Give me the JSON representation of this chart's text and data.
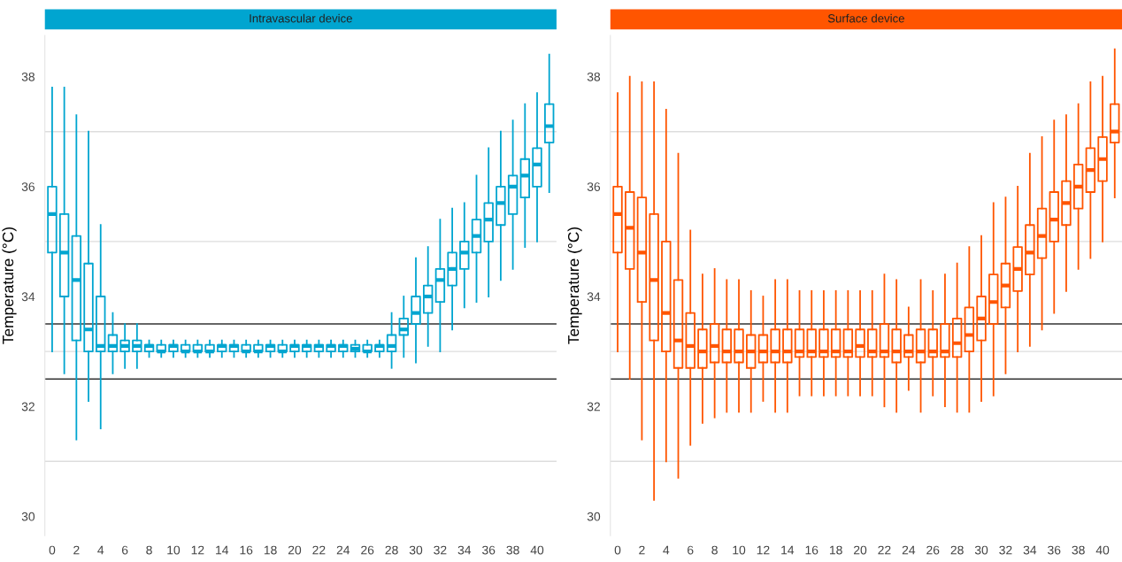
{
  "chart_data": [
    {
      "type": "box",
      "title": "Intravascular device",
      "ylabel": "Temperature (°C)",
      "categories": [
        "0",
        null,
        "2",
        null,
        "4",
        null,
        "6",
        null,
        "8",
        null,
        "10",
        null,
        "12",
        null,
        "14",
        null,
        "16",
        null,
        "18",
        null,
        "20",
        null,
        "22",
        null,
        "24",
        null,
        "26",
        null,
        "28",
        null,
        "30",
        null,
        "32",
        null,
        "34",
        null,
        "36",
        null,
        "38",
        null,
        "40",
        null
      ],
      "ylim": [
        29.65,
        38.75
      ],
      "yticks": [
        30,
        {
          "value": 31,
          "label": null
        },
        32,
        {
          "value": 33,
          "label": null
        },
        34,
        {
          "value": 35,
          "label": null
        },
        36,
        {
          "value": 37,
          "label": null
        },
        38
      ],
      "grid": "y",
      "legend": false,
      "ref_lines": [
        {
          "axis": "y",
          "value": 33.5,
          "color": "#333333"
        },
        {
          "axis": "y",
          "value": 32.5,
          "color": "#333333"
        }
      ],
      "series": [
        {
          "color": "#00a5d0",
          "boxes": [
            {
              "low": 33.0,
              "q1": 34.8,
              "median": 35.5,
              "q3": 36.0,
              "high": 37.8
            },
            {
              "low": 32.6,
              "q1": 34.0,
              "median": 34.8,
              "q3": 35.5,
              "high": 37.8
            },
            {
              "low": 31.4,
              "q1": 33.2,
              "median": 34.3,
              "q3": 35.1,
              "high": 37.3
            },
            {
              "low": 32.1,
              "q1": 33.0,
              "median": 33.4,
              "q3": 34.6,
              "high": 37.0
            },
            {
              "low": 31.6,
              "q1": 33.0,
              "median": 33.1,
              "q3": 34.0,
              "high": 35.3
            },
            {
              "low": 32.6,
              "q1": 33.0,
              "median": 33.1,
              "q3": 33.3,
              "high": 33.7
            },
            {
              "low": 32.7,
              "q1": 33.0,
              "median": 33.1,
              "q3": 33.2,
              "high": 33.5
            },
            {
              "low": 32.7,
              "q1": 33.0,
              "median": 33.1,
              "q3": 33.2,
              "high": 33.5
            },
            {
              "low": 32.9,
              "q1": 33.0,
              "median": 33.1,
              "q3": 33.12,
              "high": 33.2
            },
            {
              "low": 32.9,
              "q1": 33.0,
              "median": 33.0,
              "q3": 33.12,
              "high": 33.2
            },
            {
              "low": 32.9,
              "q1": 33.0,
              "median": 33.1,
              "q3": 33.12,
              "high": 33.2
            },
            {
              "low": 32.9,
              "q1": 33.0,
              "median": 33.0,
              "q3": 33.12,
              "high": 33.2
            },
            {
              "low": 32.9,
              "q1": 33.0,
              "median": 33.0,
              "q3": 33.12,
              "high": 33.2
            },
            {
              "low": 32.9,
              "q1": 33.0,
              "median": 33.0,
              "q3": 33.12,
              "high": 33.2
            },
            {
              "low": 32.9,
              "q1": 33.0,
              "median": 33.1,
              "q3": 33.12,
              "high": 33.2
            },
            {
              "low": 32.9,
              "q1": 33.0,
              "median": 33.1,
              "q3": 33.12,
              "high": 33.2
            },
            {
              "low": 32.9,
              "q1": 33.0,
              "median": 33.0,
              "q3": 33.12,
              "high": 33.2
            },
            {
              "low": 32.9,
              "q1": 33.0,
              "median": 33.0,
              "q3": 33.12,
              "high": 33.2
            },
            {
              "low": 32.9,
              "q1": 33.0,
              "median": 33.1,
              "q3": 33.12,
              "high": 33.2
            },
            {
              "low": 32.9,
              "q1": 33.0,
              "median": 33.0,
              "q3": 33.12,
              "high": 33.2
            },
            {
              "low": 32.9,
              "q1": 33.0,
              "median": 33.1,
              "q3": 33.12,
              "high": 33.2
            },
            {
              "low": 32.9,
              "q1": 33.0,
              "median": 33.1,
              "q3": 33.12,
              "high": 33.2
            },
            {
              "low": 32.9,
              "q1": 33.0,
              "median": 33.1,
              "q3": 33.12,
              "high": 33.2
            },
            {
              "low": 32.9,
              "q1": 33.0,
              "median": 33.1,
              "q3": 33.12,
              "high": 33.2
            },
            {
              "low": 32.9,
              "q1": 33.0,
              "median": 33.1,
              "q3": 33.12,
              "high": 33.2
            },
            {
              "low": 32.9,
              "q1": 33.0,
              "median": 33.05,
              "q3": 33.12,
              "high": 33.2
            },
            {
              "low": 32.9,
              "q1": 33.0,
              "median": 33.0,
              "q3": 33.12,
              "high": 33.2
            },
            {
              "low": 32.9,
              "q1": 33.0,
              "median": 33.1,
              "q3": 33.12,
              "high": 33.2
            },
            {
              "low": 32.7,
              "q1": 33.0,
              "median": 33.1,
              "q3": 33.3,
              "high": 33.7
            },
            {
              "low": 32.9,
              "q1": 33.3,
              "median": 33.4,
              "q3": 33.6,
              "high": 34.0
            },
            {
              "low": 32.8,
              "q1": 33.5,
              "median": 33.7,
              "q3": 34.0,
              "high": 34.7
            },
            {
              "low": 33.1,
              "q1": 33.7,
              "median": 34.0,
              "q3": 34.2,
              "high": 34.9
            },
            {
              "low": 33.0,
              "q1": 33.9,
              "median": 34.3,
              "q3": 34.5,
              "high": 35.4
            },
            {
              "low": 33.4,
              "q1": 34.2,
              "median": 34.5,
              "q3": 34.8,
              "high": 35.6
            },
            {
              "low": 33.8,
              "q1": 34.5,
              "median": 34.8,
              "q3": 35.0,
              "high": 35.7
            },
            {
              "low": 33.9,
              "q1": 34.8,
              "median": 35.1,
              "q3": 35.4,
              "high": 36.2
            },
            {
              "low": 34.0,
              "q1": 35.0,
              "median": 35.4,
              "q3": 35.7,
              "high": 36.7
            },
            {
              "low": 34.3,
              "q1": 35.3,
              "median": 35.7,
              "q3": 36.0,
              "high": 37.0
            },
            {
              "low": 34.5,
              "q1": 35.5,
              "median": 36.0,
              "q3": 36.2,
              "high": 37.2
            },
            {
              "low": 34.9,
              "q1": 35.8,
              "median": 36.2,
              "q3": 36.5,
              "high": 37.5
            },
            {
              "low": 35.0,
              "q1": 36.0,
              "median": 36.4,
              "q3": 36.7,
              "high": 37.7
            },
            {
              "low": 35.9,
              "q1": 36.8,
              "median": 37.1,
              "q3": 37.5,
              "high": 38.4
            }
          ]
        }
      ]
    },
    {
      "type": "box",
      "title": "Surface device",
      "ylabel": "Temperature (°C)",
      "categories": [
        "0",
        null,
        "2",
        null,
        "4",
        null,
        "6",
        null,
        "8",
        null,
        "10",
        null,
        "12",
        null,
        "14",
        null,
        "16",
        null,
        "18",
        null,
        "20",
        null,
        "22",
        null,
        "24",
        null,
        "26",
        null,
        "28",
        null,
        "30",
        null,
        "32",
        null,
        "34",
        null,
        "36",
        null,
        "38",
        null,
        "40",
        null
      ],
      "ylim": [
        29.65,
        38.75
      ],
      "yticks": [
        30,
        {
          "value": 31,
          "label": null
        },
        32,
        {
          "value": 33,
          "label": null
        },
        34,
        {
          "value": 35,
          "label": null
        },
        36,
        {
          "value": 37,
          "label": null
        },
        38
      ],
      "grid": "y",
      "legend": false,
      "ref_lines": [
        {
          "axis": "y",
          "value": 33.5,
          "color": "#333333"
        },
        {
          "axis": "y",
          "value": 32.5,
          "color": "#333333"
        }
      ],
      "series": [
        {
          "color": "#ff5500",
          "boxes": [
            {
              "low": 33.0,
              "q1": 34.8,
              "median": 35.5,
              "q3": 36.0,
              "high": 37.7
            },
            {
              "low": 32.5,
              "q1": 34.5,
              "median": 35.25,
              "q3": 35.9,
              "high": 38.0
            },
            {
              "low": 31.4,
              "q1": 33.9,
              "median": 34.8,
              "q3": 35.8,
              "high": 37.9
            },
            {
              "low": 30.3,
              "q1": 33.2,
              "median": 34.3,
              "q3": 35.5,
              "high": 37.9
            },
            {
              "low": 31.0,
              "q1": 33.0,
              "median": 33.7,
              "q3": 35.0,
              "high": 37.4
            },
            {
              "low": 30.7,
              "q1": 32.7,
              "median": 33.2,
              "q3": 34.3,
              "high": 36.6
            },
            {
              "low": 31.3,
              "q1": 32.7,
              "median": 33.1,
              "q3": 33.7,
              "high": 35.2
            },
            {
              "low": 31.7,
              "q1": 32.7,
              "median": 33.0,
              "q3": 33.4,
              "high": 34.4
            },
            {
              "low": 31.8,
              "q1": 32.8,
              "median": 33.1,
              "q3": 33.5,
              "high": 34.5
            },
            {
              "low": 31.9,
              "q1": 32.8,
              "median": 33.0,
              "q3": 33.4,
              "high": 34.3
            },
            {
              "low": 31.9,
              "q1": 32.8,
              "median": 33.0,
              "q3": 33.4,
              "high": 34.3
            },
            {
              "low": 31.9,
              "q1": 32.7,
              "median": 33.0,
              "q3": 33.3,
              "high": 34.1
            },
            {
              "low": 32.1,
              "q1": 32.8,
              "median": 33.0,
              "q3": 33.3,
              "high": 34.0
            },
            {
              "low": 31.9,
              "q1": 32.8,
              "median": 33.0,
              "q3": 33.4,
              "high": 34.3
            },
            {
              "low": 31.9,
              "q1": 32.8,
              "median": 33.0,
              "q3": 33.4,
              "high": 34.3
            },
            {
              "low": 32.2,
              "q1": 32.9,
              "median": 33.0,
              "q3": 33.4,
              "high": 34.1
            },
            {
              "low": 32.2,
              "q1": 32.9,
              "median": 33.0,
              "q3": 33.4,
              "high": 34.1
            },
            {
              "low": 32.2,
              "q1": 32.9,
              "median": 33.0,
              "q3": 33.4,
              "high": 34.1
            },
            {
              "low": 32.2,
              "q1": 32.9,
              "median": 33.0,
              "q3": 33.4,
              "high": 34.1
            },
            {
              "low": 32.2,
              "q1": 32.9,
              "median": 33.0,
              "q3": 33.4,
              "high": 34.1
            },
            {
              "low": 32.2,
              "q1": 32.9,
              "median": 33.1,
              "q3": 33.4,
              "high": 34.1
            },
            {
              "low": 32.2,
              "q1": 32.9,
              "median": 33.0,
              "q3": 33.4,
              "high": 34.1
            },
            {
              "low": 32.0,
              "q1": 32.9,
              "median": 33.0,
              "q3": 33.5,
              "high": 34.4
            },
            {
              "low": 31.9,
              "q1": 32.8,
              "median": 33.0,
              "q3": 33.4,
              "high": 34.3
            },
            {
              "low": 32.3,
              "q1": 32.9,
              "median": 33.0,
              "q3": 33.3,
              "high": 33.8
            },
            {
              "low": 31.9,
              "q1": 32.8,
              "median": 33.0,
              "q3": 33.4,
              "high": 34.3
            },
            {
              "low": 32.2,
              "q1": 32.9,
              "median": 33.0,
              "q3": 33.4,
              "high": 34.1
            },
            {
              "low": 32.0,
              "q1": 32.9,
              "median": 33.0,
              "q3": 33.5,
              "high": 34.4
            },
            {
              "low": 31.9,
              "q1": 32.9,
              "median": 33.15,
              "q3": 33.6,
              "high": 34.6
            },
            {
              "low": 31.9,
              "q1": 33.0,
              "median": 33.3,
              "q3": 33.8,
              "high": 34.9
            },
            {
              "low": 32.1,
              "q1": 33.2,
              "median": 33.6,
              "q3": 34.0,
              "high": 35.1
            },
            {
              "low": 32.2,
              "q1": 33.5,
              "median": 33.9,
              "q3": 34.4,
              "high": 35.7
            },
            {
              "low": 32.6,
              "q1": 33.8,
              "median": 34.2,
              "q3": 34.6,
              "high": 35.8
            },
            {
              "low": 33.0,
              "q1": 34.1,
              "median": 34.5,
              "q3": 34.9,
              "high": 36.0
            },
            {
              "low": 33.1,
              "q1": 34.4,
              "median": 34.8,
              "q3": 35.3,
              "high": 36.6
            },
            {
              "low": 33.4,
              "q1": 34.7,
              "median": 35.1,
              "q3": 35.6,
              "high": 36.9
            },
            {
              "low": 33.7,
              "q1": 35.0,
              "median": 35.4,
              "q3": 35.9,
              "high": 37.2
            },
            {
              "low": 34.1,
              "q1": 35.3,
              "median": 35.7,
              "q3": 36.1,
              "high": 37.3
            },
            {
              "low": 34.5,
              "q1": 35.6,
              "median": 36.0,
              "q3": 36.4,
              "high": 37.5
            },
            {
              "low": 34.7,
              "q1": 35.9,
              "median": 36.3,
              "q3": 36.7,
              "high": 37.9
            },
            {
              "low": 35.0,
              "q1": 36.1,
              "median": 36.5,
              "q3": 36.9,
              "high": 38.0
            },
            {
              "low": 35.8,
              "q1": 36.8,
              "median": 37.0,
              "q3": 37.5,
              "high": 38.5
            }
          ]
        }
      ]
    }
  ]
}
